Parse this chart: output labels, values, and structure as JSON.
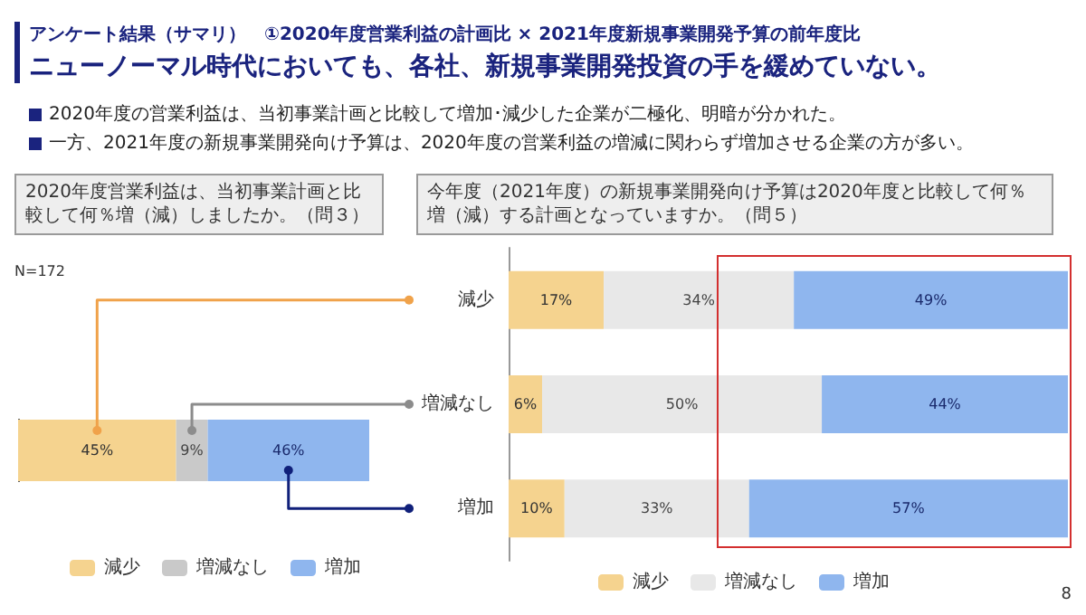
{
  "chart_data": [
    {
      "type": "bar",
      "orientation": "horizontal",
      "stacked": true,
      "title": "2020年度営業利益は、当初事業計画と比較して何％増（減）しましたか。（問３）",
      "categories": [
        null
      ],
      "series": [
        {
          "name": "減少",
          "color": "#f5d38f",
          "values": [
            45
          ],
          "value_labels": [
            "45%"
          ]
        },
        {
          "name": "増減なし",
          "color": "#c9c9c9",
          "values": [
            9
          ],
          "value_labels": [
            "9%"
          ]
        },
        {
          "name": "増加",
          "color": "#8fb6ee",
          "values": [
            46
          ],
          "value_labels": [
            "46%"
          ]
        }
      ],
      "legend": "bottom",
      "tick_labels": false,
      "grid": false,
      "annotations": [
        "アンケート結果（サマリ）　①2020年度営業利益の計画比 × 2021年度新規事業開発予算の前年度比",
        "ニューノーマル時代においても、各社、新規事業開発投資の手を緩めていない。",
        "2020年度の営業利益は、当初事業計画と比較して増加･減少した企業が二極化、明暗が分かれた。",
        "一方、2021年度の新規事業開発向け予算は、2020年度の営業利益の増減に関わらず増加させる企業の方が多い。",
        "N=172",
        "8"
      ]
    },
    {
      "type": "bar",
      "orientation": "horizontal",
      "stacked": true,
      "title": "今年度（2021年度）の新規事業開発向け予算は2020年度と比較して何％増（減）する計画となっていますか。（問５）",
      "categories": [
        "減少",
        "増減なし",
        "増加"
      ],
      "series": [
        {
          "name": "減少",
          "color": "#f5d38f",
          "values": [
            17,
            6,
            10
          ],
          "value_labels": [
            "17%",
            "6%",
            "10%"
          ]
        },
        {
          "name": "増減なし",
          "color": "#e8e8e8",
          "values": [
            34,
            50,
            33
          ],
          "value_labels": [
            "34%",
            "50%",
            "33%"
          ]
        },
        {
          "name": "増加",
          "color": "#8fb6ee",
          "values": [
            49,
            44,
            57
          ],
          "value_labels": [
            "49%",
            "44%",
            "57%"
          ]
        }
      ],
      "legend": "bottom",
      "tick_labels": "y",
      "grid": false
    }
  ]
}
